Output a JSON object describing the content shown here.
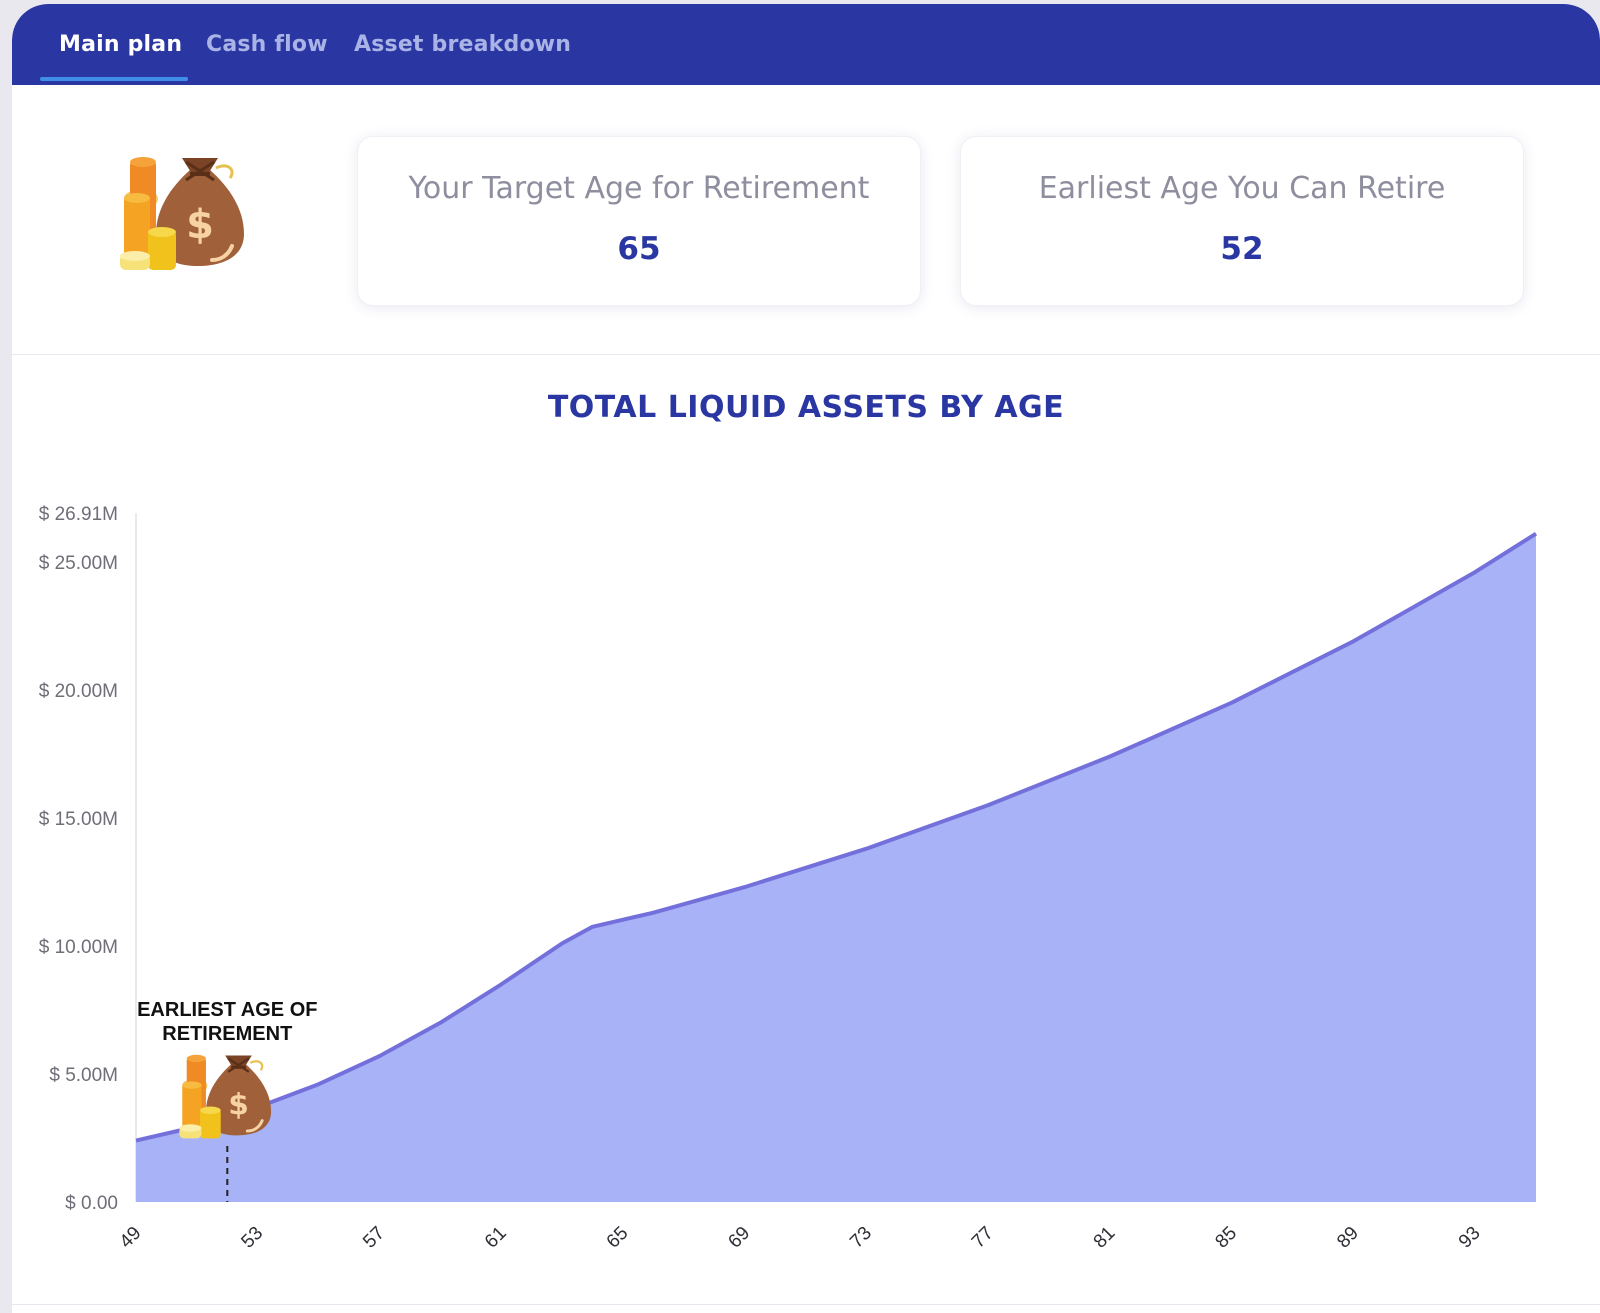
{
  "tabs": [
    {
      "label": "Main plan",
      "active": true
    },
    {
      "label": "Cash flow",
      "active": false
    },
    {
      "label": "Asset breakdown",
      "active": false
    }
  ],
  "cards": [
    {
      "label": "Your Target Age for Retirement",
      "value": "65"
    },
    {
      "label": "Earliest Age You Can Retire",
      "value": "52"
    }
  ],
  "icons": {
    "hero": "money-bag-coins-icon",
    "marker": "money-bag-coins-icon"
  },
  "colors": {
    "brand": "#2a37a3",
    "area_fill": "#a8b2f7",
    "area_line": "#7470db"
  },
  "chart_data": {
    "type": "area",
    "title": "TOTAL LIQUID ASSETS BY AGE",
    "xlabel": "",
    "ylabel": "",
    "x_range": [
      49,
      95
    ],
    "ylim": [
      0,
      26.91
    ],
    "x_ticks": [
      49,
      53,
      57,
      61,
      65,
      69,
      73,
      77,
      81,
      85,
      89,
      93
    ],
    "y_ticks": [
      {
        "value": 0,
        "label": "$ 0.00"
      },
      {
        "value": 5,
        "label": "$ 5.00M"
      },
      {
        "value": 10,
        "label": "$ 10.00M"
      },
      {
        "value": 15,
        "label": "$ 15.00M"
      },
      {
        "value": 20,
        "label": "$ 20.00M"
      },
      {
        "value": 25,
        "label": "$ 25.00M"
      },
      {
        "value": 26.91,
        "label": "$ 26.91M"
      }
    ],
    "series": [
      {
        "x": [
          49,
          51,
          53,
          55,
          57,
          59,
          61,
          63,
          64,
          66,
          69,
          73,
          77,
          81,
          85,
          89,
          93,
          95
        ],
        "values": [
          2.4,
          2.95,
          3.7,
          4.6,
          5.7,
          7.0,
          8.5,
          10.1,
          10.75,
          11.3,
          12.3,
          13.8,
          15.5,
          17.4,
          19.5,
          21.9,
          24.6,
          26.1
        ]
      }
    ],
    "annotation": {
      "x": 52,
      "text_line1": "EARLIEST AGE OF",
      "text_line2": "RETIREMENT"
    },
    "grid": false,
    "legend": "none"
  }
}
